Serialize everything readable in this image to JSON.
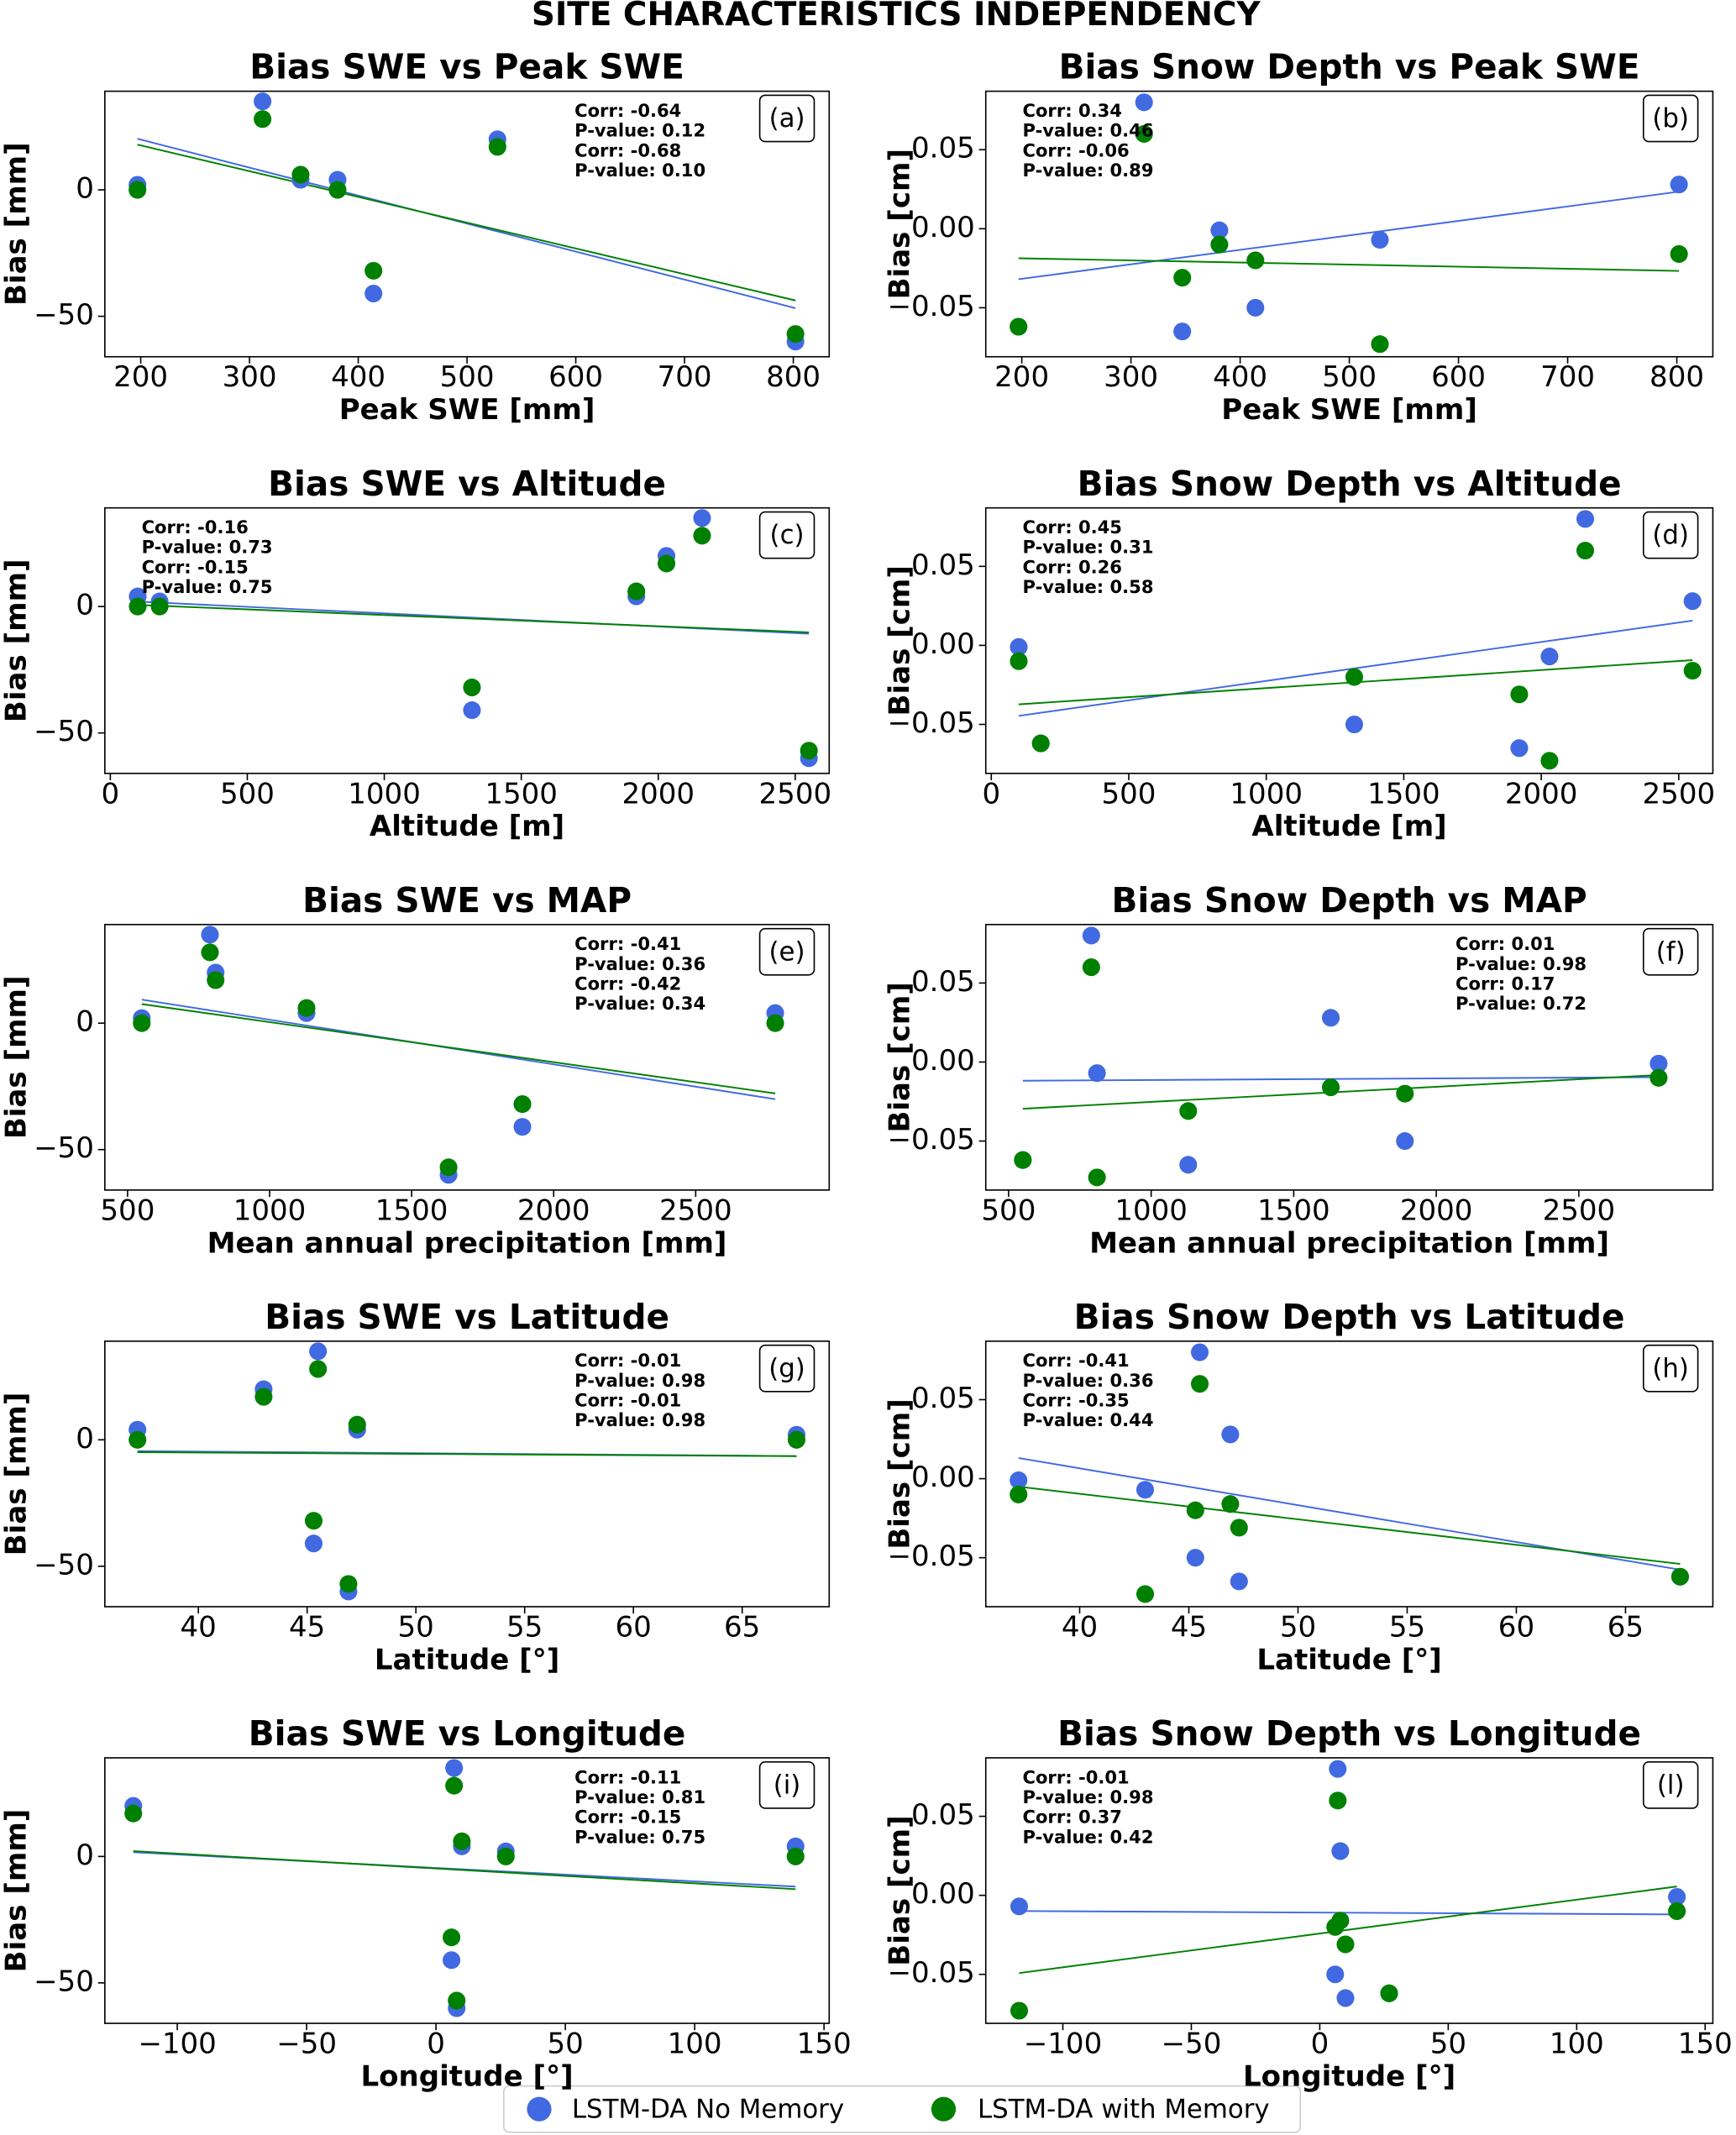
{
  "title": "SITE CHARACTERISTICS INDEPENDENCY",
  "chart_data": [
    {
      "type": "scatter",
      "title": "Bias SWE vs Peak SWE",
      "label": "(a)",
      "xlabel": "Peak SWE [mm]",
      "ylabel": "Bias [mm]",
      "annot_loc": "upper right",
      "x": [
        197,
        312,
        347,
        381,
        414,
        528,
        802
      ],
      "xlim": [
        167,
        833
      ],
      "xticks": [
        200,
        300,
        400,
        500,
        600,
        700,
        800
      ],
      "ylim": [
        -66,
        39
      ],
      "yticks": [
        {
          "value": -50,
          "label": "−50"
        },
        0
      ],
      "series": [
        {
          "name": "LSTM-DA No Memory",
          "color": "#4169e1",
          "values": [
            2,
            35,
            4,
            4,
            -41,
            20,
            -60
          ],
          "annotations": [
            "Corr: -0.64",
            "P-value: 0.12"
          ]
        },
        {
          "name": "LSTM-DA with Memory",
          "color": "#008000",
          "values": [
            0,
            28,
            6,
            0,
            -32,
            17,
            -57
          ],
          "annotations": [
            "Corr: -0.68",
            "P-value: 0.10"
          ]
        }
      ]
    },
    {
      "type": "scatter",
      "title": "Bias Snow Depth vs Peak SWE",
      "label": "(b)",
      "xlabel": "Peak SWE [mm]",
      "ylabel": "Bias [cm]",
      "annot_loc": "upper left",
      "x": [
        197,
        312,
        347,
        381,
        414,
        528,
        802
      ],
      "xlim": [
        167,
        833
      ],
      "xticks": [
        200,
        300,
        400,
        500,
        600,
        700,
        800
      ],
      "ylim": [
        -0.081,
        0.087
      ],
      "yticks": [
        {
          "value": -0.05,
          "label": "−0.05"
        },
        {
          "value": 0,
          "label": "0.00"
        },
        0.05
      ],
      "series": [
        {
          "name": "LSTM-DA No Memory",
          "color": "#4169e1",
          "values": [
            -0.062,
            0.08,
            -0.065,
            -0.001,
            -0.05,
            -0.007,
            0.028
          ],
          "annotations": [
            "Corr: 0.34",
            "P-value: 0.46"
          ]
        },
        {
          "name": "LSTM-DA with Memory",
          "color": "#008000",
          "values": [
            -0.062,
            0.06,
            -0.031,
            -0.01,
            -0.02,
            -0.073,
            -0.016
          ],
          "annotations": [
            "Corr: -0.06",
            "P-value: 0.89"
          ]
        }
      ]
    },
    {
      "type": "scatter",
      "title": "Bias SWE vs Altitude",
      "label": "(c)",
      "xlabel": "Altitude [m]",
      "ylabel": "Bias [mm]",
      "annot_loc": "upper left",
      "x": [
        180,
        2160,
        1920,
        100,
        1320,
        2030,
        2550
      ],
      "xlim": [
        -20,
        2624
      ],
      "xticks": [
        0,
        500,
        1000,
        1500,
        2000,
        2500
      ],
      "ylim": [
        -66,
        39
      ],
      "yticks": [
        {
          "value": -50,
          "label": "−50"
        },
        0
      ],
      "series": [
        {
          "name": "LSTM-DA No Memory",
          "color": "#4169e1",
          "values": [
            2,
            35,
            4,
            4,
            -41,
            20,
            -60
          ],
          "annotations": [
            "Corr: -0.16",
            "P-value: 0.73"
          ]
        },
        {
          "name": "LSTM-DA with Memory",
          "color": "#008000",
          "values": [
            0,
            28,
            6,
            0,
            -32,
            17,
            -57
          ],
          "annotations": [
            "Corr: -0.15",
            "P-value: 0.75"
          ]
        }
      ]
    },
    {
      "type": "scatter",
      "title": "Bias Snow Depth vs Altitude",
      "label": "(d)",
      "xlabel": "Altitude [m]",
      "ylabel": "Bias [cm]",
      "annot_loc": "upper left",
      "x": [
        180,
        2160,
        1920,
        100,
        1320,
        2030,
        2550
      ],
      "xlim": [
        -20,
        2624
      ],
      "xticks": [
        0,
        500,
        1000,
        1500,
        2000,
        2500
      ],
      "ylim": [
        -0.081,
        0.087
      ],
      "yticks": [
        {
          "value": -0.05,
          "label": "−0.05"
        },
        {
          "value": 0,
          "label": "0.00"
        },
        0.05
      ],
      "series": [
        {
          "name": "LSTM-DA No Memory",
          "color": "#4169e1",
          "values": [
            -0.062,
            0.08,
            -0.065,
            -0.001,
            -0.05,
            -0.007,
            0.028
          ],
          "annotations": [
            "Corr: 0.45",
            "P-value: 0.31"
          ]
        },
        {
          "name": "LSTM-DA with Memory",
          "color": "#008000",
          "values": [
            -0.062,
            0.06,
            -0.031,
            -0.01,
            -0.02,
            -0.073,
            -0.016
          ],
          "annotations": [
            "Corr: 0.26",
            "P-value: 0.58"
          ]
        }
      ]
    },
    {
      "type": "scatter",
      "title": "Bias SWE vs MAP",
      "label": "(e)",
      "xlabel": "Mean annual precipitation [mm]",
      "ylabel": "Bias [mm]",
      "annot_loc": "upper right",
      "x": [
        550,
        790,
        1130,
        2780,
        1890,
        810,
        1630
      ],
      "xlim": [
        420,
        2970
      ],
      "xticks": [
        500,
        1000,
        1500,
        2000,
        2500
      ],
      "ylim": [
        -66,
        39
      ],
      "yticks": [
        {
          "value": -50,
          "label": "−50"
        },
        0
      ],
      "series": [
        {
          "name": "LSTM-DA No Memory",
          "color": "#4169e1",
          "values": [
            2,
            35,
            4,
            4,
            -41,
            20,
            -60
          ],
          "annotations": [
            "Corr: -0.41",
            "P-value: 0.36"
          ]
        },
        {
          "name": "LSTM-DA with Memory",
          "color": "#008000",
          "values": [
            0,
            28,
            6,
            0,
            -32,
            17,
            -57
          ],
          "annotations": [
            "Corr: -0.42",
            "P-value: 0.34"
          ]
        }
      ]
    },
    {
      "type": "scatter",
      "title": "Bias Snow Depth vs MAP",
      "label": "(f)",
      "xlabel": "Mean annual precipitation [mm]",
      "ylabel": "Bias [cm]",
      "annot_loc": "upper right",
      "x": [
        550,
        790,
        1130,
        2780,
        1890,
        810,
        1630
      ],
      "xlim": [
        420,
        2970
      ],
      "xticks": [
        500,
        1000,
        1500,
        2000,
        2500
      ],
      "ylim": [
        -0.081,
        0.087
      ],
      "yticks": [
        {
          "value": -0.05,
          "label": "−0.05"
        },
        {
          "value": 0,
          "label": "0.00"
        },
        0.05
      ],
      "series": [
        {
          "name": "LSTM-DA No Memory",
          "color": "#4169e1",
          "values": [
            -0.062,
            0.08,
            -0.065,
            -0.001,
            -0.05,
            -0.007,
            0.028
          ],
          "annotations": [
            "Corr: 0.01",
            "P-value: 0.98"
          ]
        },
        {
          "name": "LSTM-DA with Memory",
          "color": "#008000",
          "values": [
            -0.062,
            0.06,
            -0.031,
            -0.01,
            -0.02,
            -0.073,
            -0.016
          ],
          "annotations": [
            "Corr: 0.17",
            "P-value: 0.72"
          ]
        }
      ]
    },
    {
      "type": "scatter",
      "title": "Bias SWE vs Latitude",
      "label": "(g)",
      "xlabel": "Latitude [°]",
      "ylabel": "Bias [mm]",
      "annot_loc": "upper right",
      "x": [
        67.5,
        45.5,
        47.3,
        37.2,
        45.3,
        43.0,
        46.9
      ],
      "xlim": [
        35.7,
        69
      ],
      "xticks": [
        40,
        45,
        50,
        55,
        60,
        65
      ],
      "ylim": [
        -66,
        39
      ],
      "yticks": [
        {
          "value": -50,
          "label": "−50"
        },
        0
      ],
      "series": [
        {
          "name": "LSTM-DA No Memory",
          "color": "#4169e1",
          "values": [
            2,
            35,
            4,
            4,
            -41,
            20,
            -60
          ],
          "annotations": [
            "Corr: -0.01",
            "P-value: 0.98"
          ]
        },
        {
          "name": "LSTM-DA with Memory",
          "color": "#008000",
          "values": [
            0,
            28,
            6,
            0,
            -32,
            17,
            -57
          ],
          "annotations": [
            "Corr: -0.01",
            "P-value: 0.98"
          ]
        }
      ]
    },
    {
      "type": "scatter",
      "title": "Bias Snow Depth vs Latitude",
      "label": "(h)",
      "xlabel": "Latitude [°]",
      "ylabel": "Bias [cm]",
      "annot_loc": "upper left",
      "x": [
        67.5,
        45.5,
        47.3,
        37.2,
        45.3,
        43.0,
        46.9
      ],
      "xlim": [
        35.7,
        69
      ],
      "xticks": [
        40,
        45,
        50,
        55,
        60,
        65
      ],
      "ylim": [
        -0.081,
        0.087
      ],
      "yticks": [
        {
          "value": -0.05,
          "label": "−0.05"
        },
        {
          "value": 0,
          "label": "0.00"
        },
        0.05
      ],
      "series": [
        {
          "name": "LSTM-DA No Memory",
          "color": "#4169e1",
          "values": [
            -0.062,
            0.08,
            -0.065,
            -0.001,
            -0.05,
            -0.007,
            0.028
          ],
          "annotations": [
            "Corr: -0.41",
            "P-value: 0.36"
          ]
        },
        {
          "name": "LSTM-DA with Memory",
          "color": "#008000",
          "values": [
            -0.062,
            0.06,
            -0.031,
            -0.01,
            -0.02,
            -0.073,
            -0.016
          ],
          "annotations": [
            "Corr: -0.35",
            "P-value: 0.44"
          ]
        }
      ]
    },
    {
      "type": "scatter",
      "title": "Bias SWE vs Longitude",
      "label": "(i)",
      "xlabel": "Longitude [°]",
      "ylabel": "Bias [mm]",
      "annot_loc": "upper right",
      "x": [
        27,
        7,
        10,
        139,
        6,
        -117,
        8
      ],
      "xlim": [
        -128,
        152
      ],
      "xticks": [
        {
          "value": -100,
          "label": "−100"
        },
        {
          "value": -50,
          "label": "−50"
        },
        0,
        50,
        100,
        150
      ],
      "ylim": [
        -66,
        39
      ],
      "yticks": [
        {
          "value": -50,
          "label": "−50"
        },
        0
      ],
      "series": [
        {
          "name": "LSTM-DA No Memory",
          "color": "#4169e1",
          "values": [
            2,
            35,
            4,
            4,
            -41,
            20,
            -60
          ],
          "annotations": [
            "Corr: -0.11",
            "P-value: 0.81"
          ]
        },
        {
          "name": "LSTM-DA with Memory",
          "color": "#008000",
          "values": [
            0,
            28,
            6,
            0,
            -32,
            17,
            -57
          ],
          "annotations": [
            "Corr: -0.15",
            "P-value: 0.75"
          ]
        }
      ]
    },
    {
      "type": "scatter",
      "title": "Bias Snow Depth vs Longitude",
      "label": "(l)",
      "xlabel": "Longitude [°]",
      "ylabel": "Bias [cm]",
      "annot_loc": "upper left",
      "x": [
        27,
        7,
        10,
        139,
        6,
        -117,
        8
      ],
      "xlim": [
        -130,
        153
      ],
      "xticks": [
        {
          "value": -100,
          "label": "−100"
        },
        {
          "value": -50,
          "label": "−50"
        },
        0,
        50,
        100,
        150
      ],
      "ylim": [
        -0.081,
        0.087
      ],
      "yticks": [
        {
          "value": -0.05,
          "label": "−0.05"
        },
        {
          "value": 0,
          "label": "0.00"
        },
        0.05
      ],
      "series": [
        {
          "name": "LSTM-DA No Memory",
          "color": "#4169e1",
          "values": [
            -0.062,
            0.08,
            -0.065,
            -0.001,
            -0.05,
            -0.007,
            0.028
          ],
          "annotations": [
            "Corr: -0.01",
            "P-value: 0.98"
          ]
        },
        {
          "name": "LSTM-DA with Memory",
          "color": "#008000",
          "values": [
            -0.062,
            0.06,
            -0.031,
            -0.01,
            -0.02,
            -0.073,
            -0.016
          ],
          "annotations": [
            "Corr: 0.37",
            "P-value: 0.42"
          ]
        }
      ]
    }
  ]
}
